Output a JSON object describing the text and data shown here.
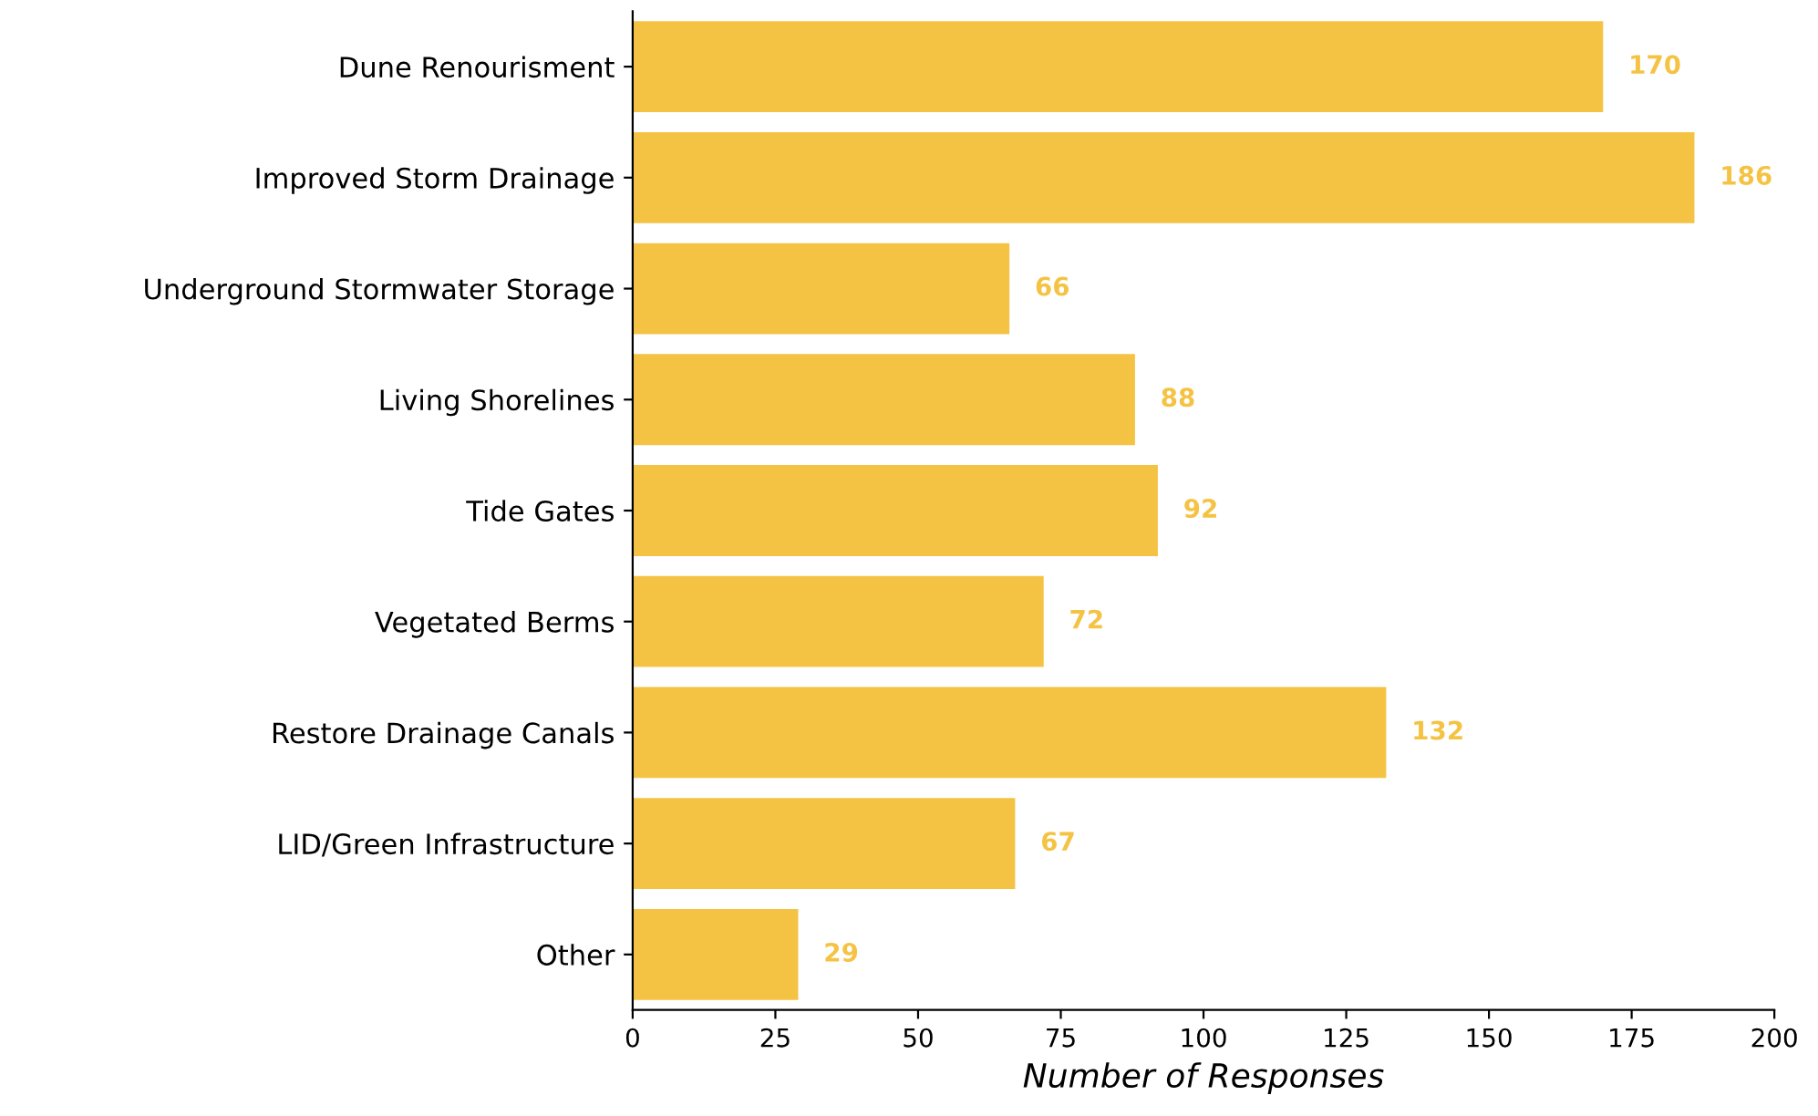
{
  "chart_data": {
    "type": "bar",
    "orientation": "horizontal",
    "xlabel": "Number of Responses",
    "categories": [
      "Dune Renourisment",
      "Improved Storm Drainage",
      "Underground Stormwater Storage",
      "Living Shorelines",
      "Tide Gates",
      "Vegetated Berms",
      "Restore Drainage Canals",
      "LID/Green Infrastructure",
      "Other"
    ],
    "values": [
      170,
      186,
      66,
      88,
      92,
      72,
      132,
      67,
      29
    ],
    "color": "#f5c344",
    "xlim": [
      0,
      200
    ],
    "xticks": [
      0,
      25,
      50,
      75,
      100,
      125,
      150,
      175,
      200
    ],
    "data_labels": true,
    "grid": false,
    "legend": false
  }
}
